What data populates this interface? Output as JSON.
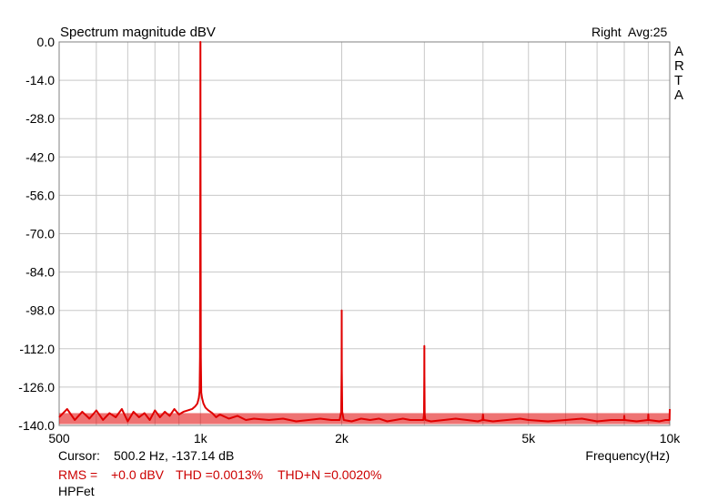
{
  "chart_data": {
    "type": "line",
    "title": "Spectrum magnitude dBV",
    "channel": "Right",
    "average": "Avg:25",
    "brand_letters": [
      "A",
      "R",
      "T",
      "A"
    ],
    "xlabel": "Frequency(Hz)",
    "x_scale": "log",
    "xlim": [
      500,
      10000
    ],
    "ylim": [
      -140,
      0
    ],
    "grid": true,
    "x_ticks": [
      {
        "value": 500,
        "label": "500"
      },
      {
        "value": 1000,
        "label": "1k"
      },
      {
        "value": 2000,
        "label": "2k"
      },
      {
        "value": 5000,
        "label": "5k"
      },
      {
        "value": 10000,
        "label": "10k"
      }
    ],
    "y_ticks": [
      {
        "value": 0,
        "label": "0.0"
      },
      {
        "value": -14,
        "label": "-14.0"
      },
      {
        "value": -28,
        "label": "-28.0"
      },
      {
        "value": -42,
        "label": "-42.0"
      },
      {
        "value": -56,
        "label": "-56.0"
      },
      {
        "value": -70,
        "label": "-70.0"
      },
      {
        "value": -84,
        "label": "-84.0"
      },
      {
        "value": -98,
        "label": "-98.0"
      },
      {
        "value": -112,
        "label": "-112.0"
      },
      {
        "value": -126,
        "label": "-126.0"
      },
      {
        "value": -140,
        "label": "-140.0"
      }
    ],
    "series": [
      {
        "color": "#e00000",
        "x": [
          500,
          520,
          540,
          560,
          580,
          600,
          620,
          640,
          660,
          680,
          700,
          720,
          740,
          760,
          780,
          800,
          820,
          840,
          860,
          880,
          900,
          920,
          940,
          960,
          975,
          985,
          992,
          996,
          998,
          999.5,
          1000,
          1000.5,
          1002,
          1004,
          1008,
          1015,
          1025,
          1040,
          1060,
          1080,
          1100,
          1150,
          1200,
          1250,
          1300,
          1400,
          1500,
          1600,
          1700,
          1800,
          1900,
          1980,
          1995,
          1999,
          2000,
          2001,
          2005,
          2020,
          2100,
          2200,
          2300,
          2400,
          2500,
          2600,
          2700,
          2800,
          2900,
          2985,
          2995,
          2999,
          3000,
          3001,
          3005,
          3015,
          3100,
          3300,
          3500,
          3700,
          3900,
          3990,
          4000,
          4010,
          4200,
          4500,
          4800,
          5000,
          5500,
          6000,
          6500,
          7000,
          7500,
          7990,
          8000,
          8010,
          8500,
          8990,
          9000,
          9010,
          9500,
          9800,
          9990,
          10000
        ],
        "y": [
          -137.0,
          -134.0,
          -138.0,
          -135.0,
          -137.5,
          -134.5,
          -138.0,
          -135.5,
          -137.0,
          -134.0,
          -138.5,
          -135.0,
          -137.0,
          -135.5,
          -138.0,
          -134.5,
          -137.0,
          -135.0,
          -136.5,
          -134.0,
          -136.0,
          -135.0,
          -134.5,
          -134.0,
          -133.0,
          -132.0,
          -130.0,
          -127.5,
          -115.0,
          -42.0,
          0.0,
          -42.0,
          -115.0,
          -128.0,
          -130.0,
          -132.0,
          -133.5,
          -134.5,
          -135.5,
          -137.0,
          -136.0,
          -137.5,
          -136.5,
          -138.0,
          -137.5,
          -138.0,
          -137.5,
          -138.5,
          -138.0,
          -137.5,
          -138.0,
          -138.0,
          -135.0,
          -120.0,
          -98.0,
          -120.0,
          -135.0,
          -138.0,
          -138.5,
          -137.5,
          -138.0,
          -137.5,
          -138.5,
          -138.0,
          -137.5,
          -138.0,
          -138.0,
          -138.0,
          -136.0,
          -122.0,
          -111.0,
          -122.0,
          -136.0,
          -138.0,
          -138.5,
          -138.0,
          -137.5,
          -138.0,
          -138.5,
          -138.0,
          -136.0,
          -138.0,
          -138.5,
          -138.0,
          -137.5,
          -138.0,
          -138.5,
          -138.0,
          -137.5,
          -138.5,
          -138.0,
          -138.0,
          -136.5,
          -138.0,
          -138.5,
          -138.0,
          -136.0,
          -138.0,
          -138.5,
          -138.0,
          -138.0,
          -134.0
        ]
      }
    ]
  },
  "footer": {
    "cursor_label": "Cursor:",
    "cursor_value": "500.2 Hz, -137.14 dB",
    "rms_label": "RMS =",
    "rms_value": "+0.0 dBV",
    "thd": "THD =0.0013%",
    "thdn": "THD+N =0.0020%",
    "device": "HPFet"
  },
  "colors": {
    "trace": "#e00000",
    "grid": "#c8c8c8",
    "frame": "#808080",
    "stats": "#cc0000"
  }
}
